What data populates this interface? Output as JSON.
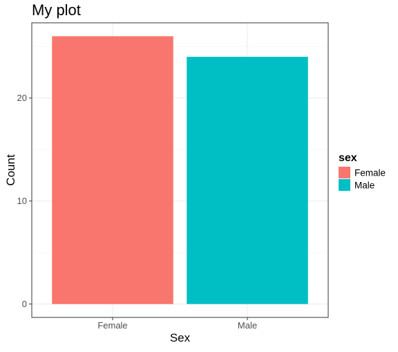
{
  "chart_data": {
    "type": "bar",
    "title": "My plot",
    "xlabel": "Sex",
    "ylabel": "Count",
    "categories": [
      "Female",
      "Male"
    ],
    "values": [
      26,
      24
    ],
    "colors": [
      "#F8766D",
      "#00BFC4"
    ],
    "ylim": [
      -1.3,
      27.3
    ],
    "yticks": [
      0,
      10,
      20
    ],
    "ytick_labels": [
      "0",
      "10",
      "20"
    ],
    "grid": true,
    "legend": {
      "title": "sex",
      "position": "right",
      "entries": [
        {
          "label": "Female",
          "color": "#F8766D"
        },
        {
          "label": "Male",
          "color": "#00BFC4"
        }
      ]
    }
  }
}
